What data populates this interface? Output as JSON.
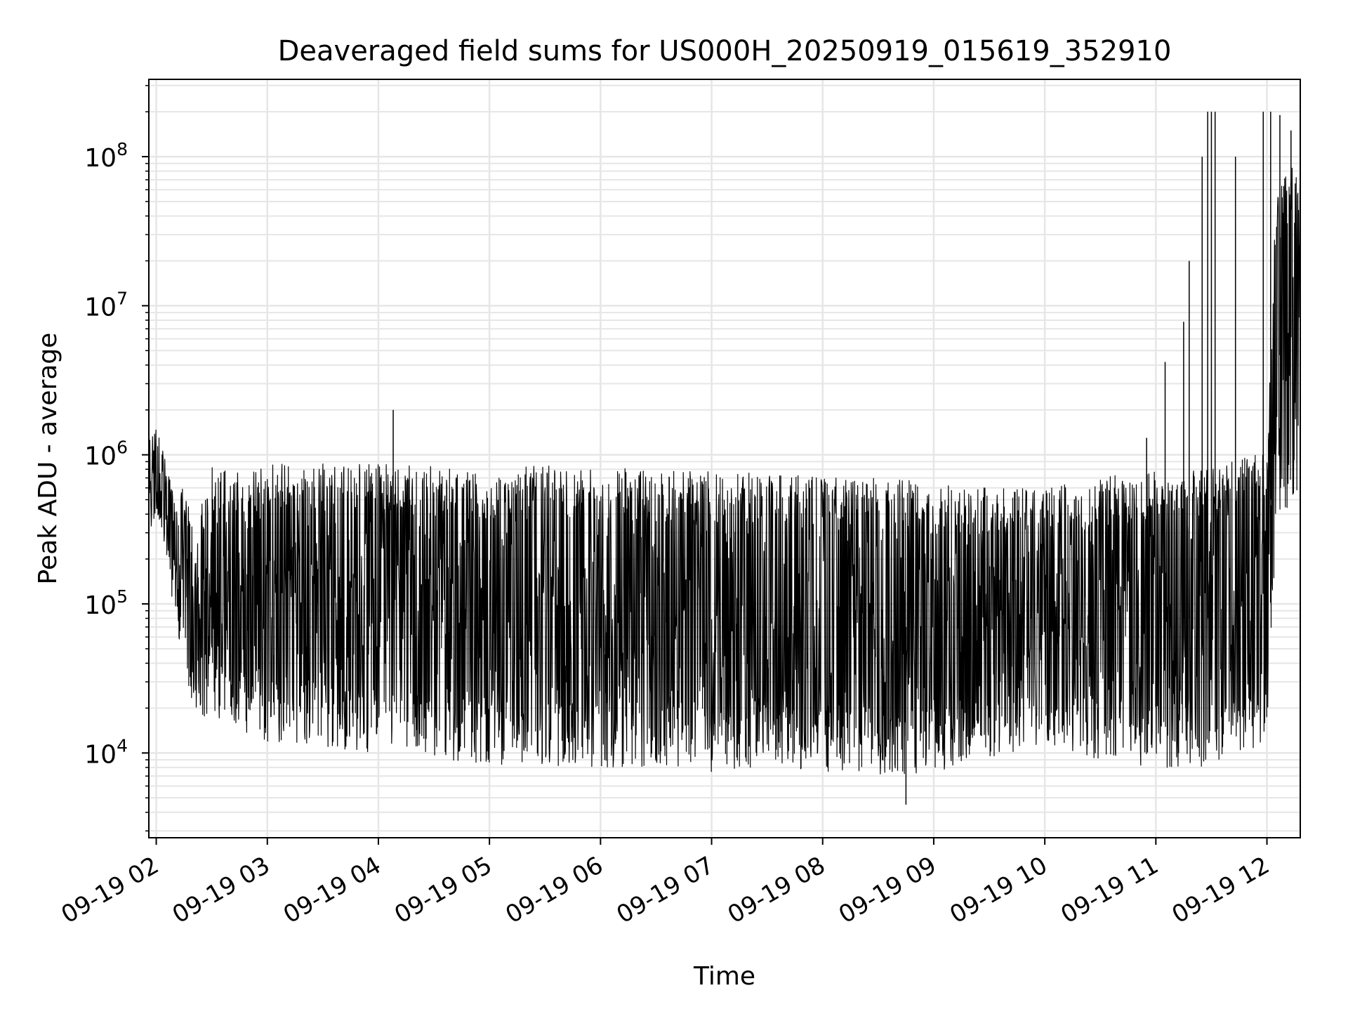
{
  "chart_data": {
    "type": "line",
    "title": "Deaveraged field sums for US000H_20250919_015619_352910",
    "xlabel": "Time",
    "ylabel": "Peak ADU - average",
    "yscale": "log",
    "xlim": [
      "09-19 01:56",
      "09-19 12:18"
    ],
    "ylim": [
      2700,
      330000000
    ],
    "grid": true,
    "x_ticks": [
      "09-19 02",
      "09-19 03",
      "09-19 04",
      "09-19 05",
      "09-19 06",
      "09-19 07",
      "09-19 08",
      "09-19 09",
      "09-19 10",
      "09-19 11",
      "09-19 12"
    ],
    "y_ticks": [
      {
        "value": 10000,
        "base": "10",
        "exp": "4"
      },
      {
        "value": 100000,
        "base": "10",
        "exp": "5"
      },
      {
        "value": 1000000,
        "base": "10",
        "exp": "6"
      },
      {
        "value": 10000000,
        "base": "10",
        "exp": "7"
      },
      {
        "value": 100000000,
        "base": "10",
        "exp": "8"
      }
    ],
    "series_color": "#000000",
    "grid_color": "#e6e6e6",
    "envelope": [
      {
        "x": "09-19 01:56",
        "low": 200000,
        "high": 1300000
      },
      {
        "x": "09-19 02:00",
        "low": 420000,
        "high": 1800000
      },
      {
        "x": "09-19 02:05",
        "low": 230000,
        "high": 900000
      },
      {
        "x": "09-19 02:10",
        "low": 80000,
        "high": 500000
      },
      {
        "x": "09-19 02:15",
        "low": 35000,
        "high": 700000
      },
      {
        "x": "09-19 02:20",
        "low": 20000,
        "high": 300000
      },
      {
        "x": "09-19 02:30",
        "low": 16000,
        "high": 850000
      },
      {
        "x": "09-19 02:45",
        "low": 14000,
        "high": 850000
      },
      {
        "x": "09-19 03:00",
        "low": 12000,
        "high": 880000
      },
      {
        "x": "09-19 03:30",
        "low": 11000,
        "high": 900000
      },
      {
        "x": "09-19 04:00",
        "low": 10000,
        "high": 880000
      },
      {
        "x": "09-19 04:30",
        "low": 9000,
        "high": 860000
      },
      {
        "x": "09-19 05:00",
        "low": 8000,
        "high": 800000
      },
      {
        "x": "09-19 05:30",
        "low": 8000,
        "high": 850000
      },
      {
        "x": "09-19 06:00",
        "low": 8000,
        "high": 820000
      },
      {
        "x": "09-19 06:30",
        "low": 8000,
        "high": 800000
      },
      {
        "x": "09-19 07:00",
        "low": 7500,
        "high": 780000
      },
      {
        "x": "09-19 07:30",
        "low": 8000,
        "high": 760000
      },
      {
        "x": "09-19 08:00",
        "low": 7500,
        "high": 700000
      },
      {
        "x": "09-19 08:30",
        "low": 7000,
        "high": 700000
      },
      {
        "x": "09-19 09:00",
        "low": 7500,
        "high": 650000
      },
      {
        "x": "09-19 09:30",
        "low": 9000,
        "high": 600000
      },
      {
        "x": "09-19 10:00",
        "low": 11000,
        "high": 600000
      },
      {
        "x": "09-19 10:30",
        "low": 9000,
        "high": 700000
      },
      {
        "x": "09-19 11:00",
        "low": 8000,
        "high": 800000
      },
      {
        "x": "09-19 11:30",
        "low": 8000,
        "high": 800000
      },
      {
        "x": "09-19 12:00",
        "low": 12000,
        "high": 1200000
      },
      {
        "x": "09-19 12:05",
        "low": 300000,
        "high": 60000000
      },
      {
        "x": "09-19 12:18",
        "low": 600000,
        "high": 100000000
      }
    ],
    "spikes": [
      {
        "x": "09-19 04:08",
        "y": 2000000
      },
      {
        "x": "09-19 08:45",
        "y": 4500
      },
      {
        "x": "09-19 10:55",
        "y": 1300000
      },
      {
        "x": "09-19 11:05",
        "y": 4200000
      },
      {
        "x": "09-19 11:15",
        "y": 7800000
      },
      {
        "x": "09-19 11:18",
        "y": 20000000
      },
      {
        "x": "09-19 11:25",
        "y": 100000000
      },
      {
        "x": "09-19 11:28",
        "y": 200000000
      },
      {
        "x": "09-19 11:30",
        "y": 200000000
      },
      {
        "x": "09-19 11:32",
        "y": 200000000
      },
      {
        "x": "09-19 11:43",
        "y": 100000000
      },
      {
        "x": "09-19 11:58",
        "y": 200000000
      },
      {
        "x": "09-19 12:02",
        "y": 200000000
      },
      {
        "x": "09-19 12:07",
        "y": 190000000
      },
      {
        "x": "09-19 12:13",
        "y": 150000000
      }
    ]
  }
}
